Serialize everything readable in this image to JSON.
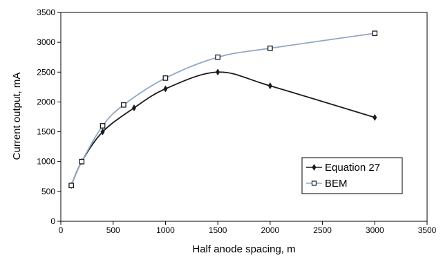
{
  "chart_data": {
    "type": "line",
    "title": "",
    "xlabel": "Half anode spacing, m",
    "ylabel": "Current output, mA",
    "xlim": [
      0,
      3500
    ],
    "ylim": [
      0,
      3500
    ],
    "xticks": [
      0,
      500,
      1000,
      1500,
      2000,
      2500,
      3000,
      3500
    ],
    "yticks": [
      0,
      500,
      1000,
      1500,
      2000,
      2500,
      3000,
      3500
    ],
    "grid": false,
    "legend_position": "bottom-right",
    "series": [
      {
        "name": "Equation 27",
        "color": "#1a1a1a",
        "marker": "diamond",
        "x": [
          100,
          200,
          400,
          700,
          1000,
          1500,
          2000,
          3000
        ],
        "y": [
          600,
          1000,
          1500,
          1900,
          2220,
          2500,
          2270,
          1740
        ]
      },
      {
        "name": "BEM",
        "color": "#8fa8c4",
        "marker": "square",
        "x": [
          100,
          200,
          400,
          600,
          1000,
          1500,
          2000,
          3000
        ],
        "y": [
          600,
          1000,
          1600,
          1950,
          2400,
          2750,
          2900,
          3150
        ]
      }
    ]
  }
}
